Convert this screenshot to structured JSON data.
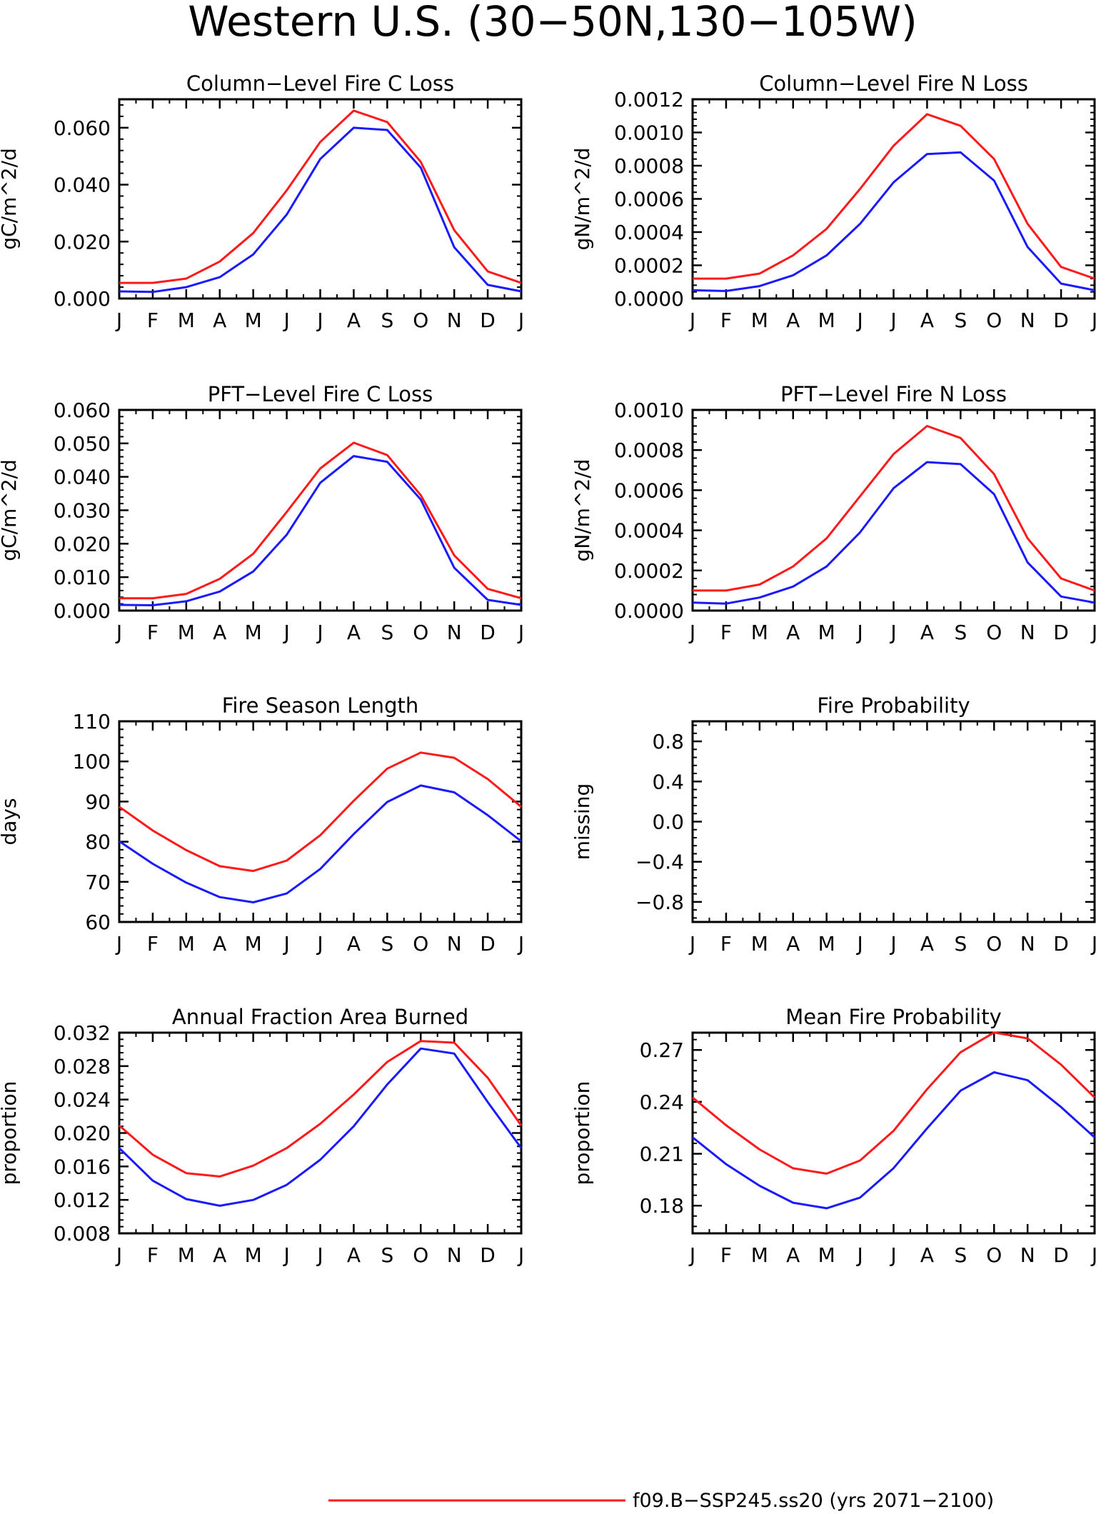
{
  "title": "Western U.S. (30−50N,130−105W)",
  "colors": {
    "red": "#ff1a1a",
    "blue": "#1a1aff",
    "axis": "#000000"
  },
  "months": [
    "J",
    "F",
    "M",
    "A",
    "M",
    "J",
    "J",
    "A",
    "S",
    "O",
    "N",
    "D",
    "J"
  ],
  "legend": {
    "label": "f09.B−SSP245.ss20 (yrs 2071−2100)"
  },
  "chart_data": [
    {
      "type": "line",
      "title": "Column−Level Fire C Loss",
      "ylabel": "gC/m^2/d",
      "ylim": [
        0,
        0.07
      ],
      "yticks": [
        0,
        0.02,
        0.04,
        0.06
      ],
      "ytick_labels": [
        "0.000",
        "0.020",
        "0.040",
        "0.060"
      ],
      "series": [
        {
          "color": "red",
          "values": [
            0.0055,
            0.0055,
            0.007,
            0.013,
            0.023,
            0.038,
            0.055,
            0.066,
            0.062,
            0.048,
            0.024,
            0.0095,
            0.0055
          ]
        },
        {
          "color": "blue",
          "values": [
            0.0025,
            0.0023,
            0.004,
            0.0075,
            0.0155,
            0.0295,
            0.049,
            0.06,
            0.0592,
            0.046,
            0.018,
            0.0048,
            0.0025
          ]
        }
      ]
    },
    {
      "type": "line",
      "title": "Column−Level Fire N Loss",
      "ylabel": "gN/m^2/d",
      "ylim": [
        0,
        0.0012
      ],
      "yticks": [
        0,
        0.0002,
        0.0004,
        0.0006,
        0.0008,
        0.001,
        0.0012
      ],
      "ytick_labels": [
        "0.0000",
        "0.0002",
        "0.0004",
        "0.0006",
        "0.0008",
        "0.0010",
        "0.0012"
      ],
      "series": [
        {
          "color": "red",
          "values": [
            0.00012,
            0.00012,
            0.00015,
            0.00026,
            0.00042,
            0.00066,
            0.00092,
            0.00111,
            0.00104,
            0.00084,
            0.00045,
            0.00019,
            0.00012
          ]
        },
        {
          "color": "blue",
          "values": [
            5e-05,
            4.5e-05,
            7.5e-05,
            0.00014,
            0.00026,
            0.00045,
            0.0007,
            0.00087,
            0.00088,
            0.00071,
            0.00031,
            9e-05,
            5e-05
          ]
        }
      ]
    },
    {
      "type": "line",
      "title": "PFT−Level Fire C Loss",
      "ylabel": "gC/m^2/d",
      "ylim": [
        0,
        0.06
      ],
      "yticks": [
        0,
        0.01,
        0.02,
        0.03,
        0.04,
        0.05,
        0.06
      ],
      "ytick_labels": [
        "0.000",
        "0.010",
        "0.020",
        "0.030",
        "0.040",
        "0.050",
        "0.060"
      ],
      "series": [
        {
          "color": "red",
          "values": [
            0.0037,
            0.0037,
            0.005,
            0.0095,
            0.017,
            0.0295,
            0.0425,
            0.0502,
            0.0465,
            0.0345,
            0.0165,
            0.0065,
            0.0037
          ]
        },
        {
          "color": "blue",
          "values": [
            0.0017,
            0.0016,
            0.0028,
            0.0057,
            0.0117,
            0.0227,
            0.0382,
            0.0462,
            0.0445,
            0.0332,
            0.0128,
            0.0032,
            0.0017
          ]
        }
      ]
    },
    {
      "type": "line",
      "title": "PFT−Level Fire N Loss",
      "ylabel": "gN/m^2/d",
      "ylim": [
        0,
        0.001
      ],
      "yticks": [
        0,
        0.0002,
        0.0004,
        0.0006,
        0.0008,
        0.001
      ],
      "ytick_labels": [
        "0.0000",
        "0.0002",
        "0.0004",
        "0.0006",
        "0.0008",
        "0.0010"
      ],
      "series": [
        {
          "color": "red",
          "values": [
            0.0001,
            0.0001,
            0.00013,
            0.00022,
            0.00036,
            0.00057,
            0.00078,
            0.00092,
            0.00086,
            0.00068,
            0.00036,
            0.00016,
            0.0001
          ]
        },
        {
          "color": "blue",
          "values": [
            4e-05,
            3.5e-05,
            6.5e-05,
            0.00012,
            0.00022,
            0.00039,
            0.00061,
            0.00074,
            0.00073,
            0.00058,
            0.00024,
            7e-05,
            4e-05
          ]
        }
      ]
    },
    {
      "type": "line",
      "title": "Fire Season Length",
      "ylabel": "days",
      "ylim": [
        60,
        110
      ],
      "yticks": [
        60,
        70,
        80,
        90,
        100,
        110
      ],
      "ytick_labels": [
        "60",
        "70",
        "80",
        "90",
        "100",
        "110"
      ],
      "series": [
        {
          "color": "red",
          "values": [
            88.7,
            82.8,
            77.9,
            73.9,
            72.7,
            75.3,
            81.6,
            90.2,
            98.2,
            102.2,
            100.9,
            95.6,
            88.7
          ]
        },
        {
          "color": "blue",
          "values": [
            80.1,
            74.5,
            69.8,
            66.2,
            64.9,
            67.1,
            73.2,
            81.9,
            89.9,
            94,
            92.3,
            86.6,
            80.1
          ]
        }
      ]
    },
    {
      "type": "line",
      "title": "Fire Probability",
      "ylabel": "missing",
      "ylim": [
        -1,
        1
      ],
      "yticks": [
        -0.8,
        -0.4,
        0,
        0.4,
        0.8
      ],
      "ytick_labels": [
        "−0.8",
        "−0.4",
        "0.0",
        "0.4",
        "0.8"
      ],
      "series": []
    },
    {
      "type": "line",
      "title": "Annual Fraction Area Burned",
      "ylabel": "proportion",
      "ylim": [
        0.008,
        0.032
      ],
      "yticks": [
        0.008,
        0.012,
        0.016,
        0.02,
        0.024,
        0.028,
        0.032
      ],
      "ytick_labels": [
        "0.008",
        "0.012",
        "0.016",
        "0.020",
        "0.024",
        "0.028",
        "0.032"
      ],
      "series": [
        {
          "color": "red",
          "values": [
            0.0209,
            0.0174,
            0.0152,
            0.0148,
            0.0161,
            0.0182,
            0.0211,
            0.0246,
            0.0285,
            0.031,
            0.0308,
            0.0266,
            0.0209
          ]
        },
        {
          "color": "blue",
          "values": [
            0.0182,
            0.0143,
            0.0121,
            0.0113,
            0.012,
            0.0138,
            0.0168,
            0.0208,
            0.0258,
            0.0301,
            0.0295,
            0.0237,
            0.0182
          ]
        }
      ]
    },
    {
      "type": "line",
      "title": "Mean Fire Probability",
      "ylabel": "proportion",
      "ylim": [
        0.164,
        0.28
      ],
      "yticks": [
        0.18,
        0.21,
        0.24,
        0.27
      ],
      "ytick_labels": [
        "0.18",
        "0.21",
        "0.24",
        "0.27"
      ],
      "series": [
        {
          "color": "red",
          "values": [
            0.2425,
            0.2265,
            0.2125,
            0.2016,
            0.1985,
            0.2061,
            0.2233,
            0.2473,
            0.2687,
            0.2801,
            0.2767,
            0.2615,
            0.2425
          ]
        },
        {
          "color": "blue",
          "values": [
            0.2195,
            0.204,
            0.1915,
            0.1817,
            0.1785,
            0.1847,
            0.2017,
            0.2247,
            0.2465,
            0.2571,
            0.2525,
            0.237,
            0.2195
          ]
        }
      ]
    }
  ]
}
